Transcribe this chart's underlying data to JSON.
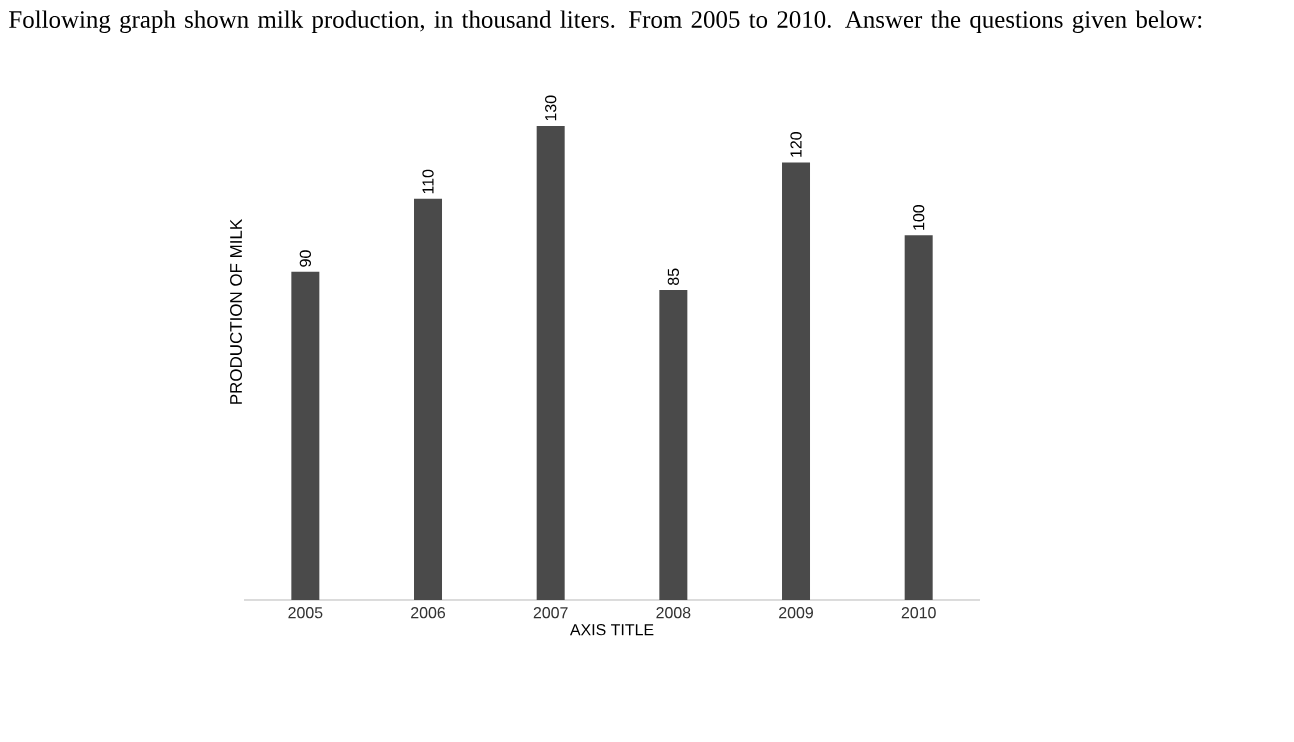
{
  "chart_data": {
    "type": "bar",
    "title": "Following graph shown milk production, in thousand liters. From 2005 to 2010. Answer the questions given below:",
    "xlabel": "AXIS TITLE",
    "ylabel": "PRODUCTION OF MILK",
    "categories": [
      "2005",
      "2006",
      "2007",
      "2008",
      "2009",
      "2010"
    ],
    "values": [
      90,
      110,
      130,
      85,
      120,
      100
    ],
    "color": "#4a4a4a",
    "data_labels": true
  }
}
